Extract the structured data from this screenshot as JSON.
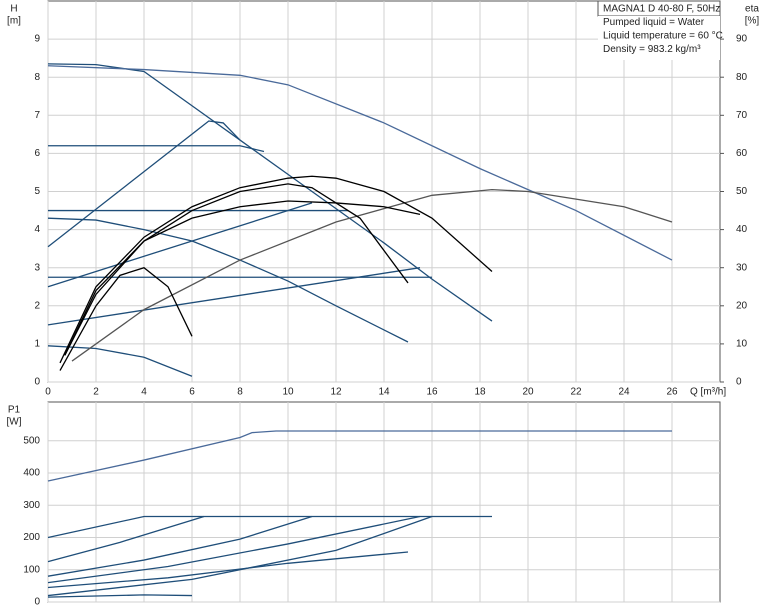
{
  "chart_data": [
    {
      "type": "line",
      "y_label": [
        "H",
        "[m]"
      ],
      "y2_label": [
        "eta",
        "[%]"
      ],
      "x_label": "Q [m³/h]",
      "annotations": [
        "MAGNA1 D 40-80 F, 50Hz",
        "Pumped liquid = Water",
        "Liquid temperature = 60 °C",
        "Density = 983.2 kg/m³"
      ],
      "xlim": [
        0,
        28
      ],
      "xticks": [
        0,
        2,
        4,
        6,
        8,
        10,
        12,
        14,
        16,
        18,
        20,
        22,
        24,
        26
      ],
      "ylim": [
        0,
        10
      ],
      "yticks": [
        0,
        1,
        2,
        3,
        4,
        5,
        6,
        7,
        8,
        9
      ],
      "y2lim": [
        0,
        100
      ],
      "y2ticks": [
        0,
        10,
        20,
        30,
        40,
        50,
        60,
        70,
        80,
        90
      ],
      "grid": true,
      "series": [
        {
          "color": "#1f4e79",
          "x": [
            0,
            2,
            4,
            6,
            8,
            10,
            12,
            14,
            16,
            18.5
          ],
          "values": [
            8.35,
            8.33,
            8.15,
            7.25,
            6.35,
            5.45,
            4.55,
            3.65,
            2.7,
            1.6
          ]
        },
        {
          "color": "#1f4e79",
          "x": [
            0,
            8,
            9
          ],
          "values": [
            6.2,
            6.2,
            6.05
          ]
        },
        {
          "color": "#1f4e79",
          "x": [
            0,
            12.5
          ],
          "values": [
            4.5,
            4.5
          ]
        },
        {
          "color": "#1f4e79",
          "x": [
            0,
            16
          ],
          "values": [
            2.75,
            2.75
          ]
        },
        {
          "color": "#1f4e79",
          "x": [
            0,
            6.7,
            7.3,
            8
          ],
          "values": [
            3.55,
            6.85,
            6.8,
            6.35
          ]
        },
        {
          "color": "#1f4e79",
          "x": [
            0,
            11
          ],
          "values": [
            2.5,
            4.7
          ]
        },
        {
          "color": "#1f4e79",
          "x": [
            0,
            15.5
          ],
          "values": [
            1.5,
            3.0
          ]
        },
        {
          "color": "#1f4e79",
          "x": [
            0,
            2,
            4,
            6,
            8,
            10,
            12,
            15
          ],
          "values": [
            4.3,
            4.25,
            4.0,
            3.7,
            3.2,
            2.65,
            2.0,
            1.05
          ]
        },
        {
          "color": "#1f4e79",
          "x": [
            0,
            2,
            4,
            6
          ],
          "values": [
            0.95,
            0.88,
            0.65,
            0.15
          ]
        },
        {
          "color": "#4a6a9a",
          "x": [
            0,
            4,
            8,
            10,
            14,
            18,
            22,
            26
          ],
          "values": [
            8.3,
            8.2,
            8.05,
            7.8,
            6.8,
            5.6,
            4.5,
            3.2
          ]
        },
        {
          "color": "#555555",
          "axis": "y2",
          "x": [
            1,
            4,
            8,
            12,
            16,
            18.5,
            20,
            24,
            26
          ],
          "values": [
            5.5,
            19,
            32,
            42,
            49,
            50.5,
            50,
            46,
            42
          ]
        },
        {
          "color": "#000000",
          "axis": "y2",
          "x": [
            0.5,
            2,
            4,
            6,
            8,
            10,
            11,
            12,
            14,
            16,
            18.5
          ],
          "values": [
            5,
            25,
            38,
            46,
            51,
            53.5,
            54,
            53.5,
            50,
            43,
            29
          ]
        },
        {
          "color": "#000000",
          "axis": "y2",
          "x": [
            0.7,
            2,
            4,
            6,
            8,
            10,
            11,
            13,
            15
          ],
          "values": [
            7,
            24,
            37,
            45,
            50,
            52,
            51,
            43,
            26
          ]
        },
        {
          "color": "#000000",
          "axis": "y2",
          "x": [
            0.7,
            2,
            4,
            6,
            8,
            10,
            12,
            14,
            15.5
          ],
          "values": [
            7,
            23,
            37,
            43,
            46,
            47.5,
            47,
            46,
            44
          ]
        },
        {
          "color": "#000000",
          "axis": "y2",
          "x": [
            0.5,
            2,
            3,
            4,
            5,
            6
          ],
          "values": [
            3,
            20,
            28,
            30,
            25,
            12
          ]
        }
      ]
    },
    {
      "type": "line",
      "y_label": [
        "P1",
        "[W]"
      ],
      "xlim": [
        0,
        28
      ],
      "ylim": [
        0,
        620
      ],
      "yticks": [
        0,
        100,
        200,
        300,
        400,
        500
      ],
      "grid": true,
      "series": [
        {
          "color": "#4a6a9a",
          "x": [
            0,
            4,
            8,
            8.5,
            9.5,
            26
          ],
          "values": [
            375,
            440,
            510,
            525,
            530,
            530
          ]
        },
        {
          "color": "#1f4e79",
          "x": [
            0,
            4,
            18.5
          ],
          "values": [
            200,
            265,
            265
          ]
        },
        {
          "color": "#1f4e79",
          "x": [
            0,
            3,
            6.5
          ],
          "values": [
            125,
            185,
            265
          ]
        },
        {
          "color": "#1f4e79",
          "x": [
            0,
            4,
            8,
            11
          ],
          "values": [
            80,
            130,
            195,
            265
          ]
        },
        {
          "color": "#1f4e79",
          "x": [
            0,
            5,
            10,
            15.5
          ],
          "values": [
            60,
            110,
            180,
            265
          ]
        },
        {
          "color": "#1f4e79",
          "x": [
            0,
            5,
            10,
            15
          ],
          "values": [
            45,
            75,
            120,
            155
          ]
        },
        {
          "color": "#1f4e79",
          "x": [
            0,
            6,
            12,
            16
          ],
          "values": [
            20,
            70,
            160,
            265
          ]
        },
        {
          "color": "#1f4e79",
          "x": [
            0,
            4,
            6
          ],
          "values": [
            15,
            22,
            20
          ]
        }
      ]
    }
  ]
}
